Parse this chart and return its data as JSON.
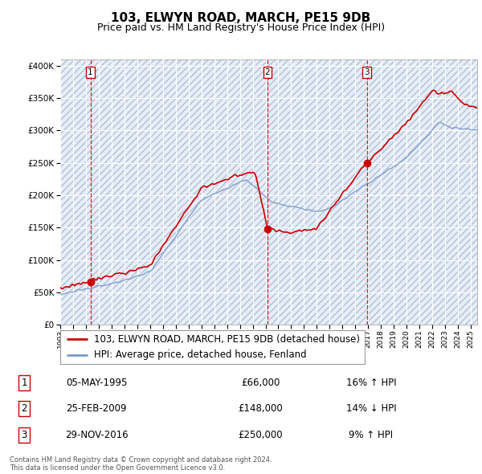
{
  "title": "103, ELWYN ROAD, MARCH, PE15 9DB",
  "subtitle": "Price paid vs. HM Land Registry's House Price Index (HPI)",
  "red_line_label": "103, ELWYN ROAD, MARCH, PE15 9DB (detached house)",
  "blue_line_label": "HPI: Average price, detached house, Fenland",
  "ylabel_ticks": [
    "£0",
    "£50K",
    "£100K",
    "£150K",
    "£200K",
    "£250K",
    "£300K",
    "£350K",
    "£400K"
  ],
  "ytick_values": [
    0,
    50000,
    100000,
    150000,
    200000,
    250000,
    300000,
    350000,
    400000
  ],
  "ylim": [
    0,
    410000
  ],
  "xlim_start": 1993.0,
  "xlim_end": 2025.5,
  "transactions": [
    {
      "num": 1,
      "date": "05-MAY-1995",
      "price": 66000,
      "pct": "16%",
      "dir": "↑",
      "year": 1995.35
    },
    {
      "num": 2,
      "date": "25-FEB-2009",
      "price": 148000,
      "pct": "14%",
      "dir": "↓",
      "year": 2009.15
    },
    {
      "num": 3,
      "date": "29-NOV-2016",
      "price": 250000,
      "pct": "9%",
      "dir": "↑",
      "year": 2016.91
    }
  ],
  "background_color": "#ffffff",
  "plot_bg_color": "#e8eef8",
  "grid_color": "#ffffff",
  "hatch_color": "#b0c0d8",
  "red_color": "#cc0000",
  "blue_color": "#7799cc",
  "vline_color": "#cc0000",
  "footer_text": "Contains HM Land Registry data © Crown copyright and database right 2024.\nThis data is licensed under the Open Government Licence v3.0.",
  "title_fontsize": 11,
  "subtitle_fontsize": 9,
  "tick_fontsize": 7.5,
  "legend_fontsize": 8.5,
  "table_fontsize": 8.5
}
